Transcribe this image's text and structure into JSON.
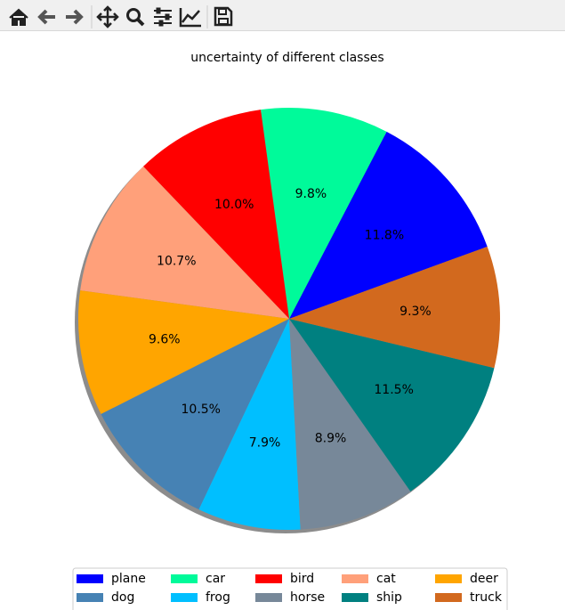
{
  "chart_data": {
    "type": "pie",
    "title": "uncertainty of different classes",
    "categories": [
      "plane",
      "car",
      "bird",
      "cat",
      "deer",
      "dog",
      "frog",
      "horse",
      "ship",
      "truck"
    ],
    "values": [
      11.8,
      9.8,
      10.0,
      10.7,
      9.6,
      10.5,
      7.9,
      8.9,
      11.5,
      9.3
    ],
    "value_labels": [
      "11.8%",
      "9.8%",
      "10.0%",
      "10.7%",
      "9.6%",
      "10.5%",
      "7.9%",
      "8.9%",
      "11.5%",
      "9.3%"
    ],
    "colors": [
      "#0000ff",
      "#00fa9a",
      "#ff0000",
      "#ffa07a",
      "#ffa500",
      "#4682b4",
      "#00bfff",
      "#778899",
      "#008080",
      "#d2691e"
    ],
    "shadow": true,
    "legend": "lower center"
  }
}
